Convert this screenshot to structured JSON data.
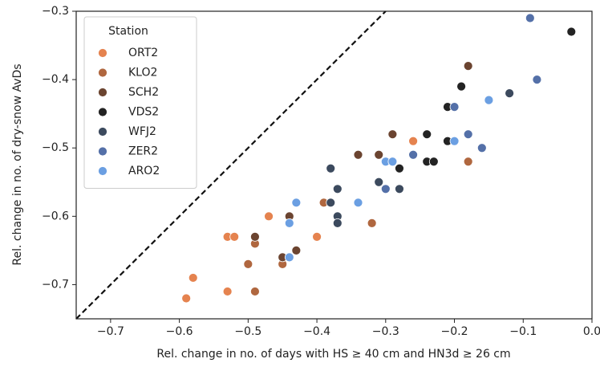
{
  "chart_data": {
    "type": "scatter",
    "x_label": "Rel. change in no. of days with HS ≥ 40 cm and HN3d ≥ 26 cm",
    "y_label": "Rel. change in no. of dry-snow AvDs",
    "legend_title": "Station",
    "legend": "upper left",
    "xlim": [
      -0.75,
      0.0
    ],
    "ylim": [
      -0.75,
      -0.3
    ],
    "xticks": [
      {
        "value": -0.7,
        "label": "−0.7"
      },
      {
        "value": -0.6,
        "label": "−0.6"
      },
      {
        "value": -0.5,
        "label": "−0.5"
      },
      {
        "value": -0.4,
        "label": "−0.4"
      },
      {
        "value": -0.3,
        "label": "−0.3"
      },
      {
        "value": -0.2,
        "label": "−0.2"
      },
      {
        "value": -0.1,
        "label": "−0.1"
      },
      {
        "value": 0.0,
        "label": "0.0"
      }
    ],
    "yticks": [
      {
        "value": -0.7,
        "label": "−0.7"
      },
      {
        "value": -0.6,
        "label": "−0.6"
      },
      {
        "value": -0.5,
        "label": "−0.5"
      },
      {
        "value": -0.4,
        "label": "−0.4"
      },
      {
        "value": -0.3,
        "label": "−0.3"
      }
    ],
    "series": [
      {
        "name": "ORT2",
        "color": "#e5834f",
        "x": [
          -0.26,
          -0.47,
          -0.53,
          -0.52,
          -0.4,
          -0.58,
          -0.53,
          -0.59
        ],
        "values": [
          -0.49,
          -0.6,
          -0.63,
          -0.63,
          -0.63,
          -0.69,
          -0.71,
          -0.72
        ]
      },
      {
        "name": "KLO2",
        "color": "#b0673f",
        "x": [
          -0.18,
          -0.39,
          -0.32,
          -0.49,
          -0.5,
          -0.45,
          -0.49
        ],
        "values": [
          -0.52,
          -0.58,
          -0.61,
          -0.64,
          -0.67,
          -0.67,
          -0.71
        ]
      },
      {
        "name": "SCH2",
        "color": "#6b4430",
        "x": [
          -0.18,
          -0.29,
          -0.34,
          -0.31,
          -0.44,
          -0.49,
          -0.43,
          -0.45
        ],
        "values": [
          -0.38,
          -0.48,
          -0.51,
          -0.51,
          -0.6,
          -0.63,
          -0.65,
          -0.66
        ]
      },
      {
        "name": "VDS2",
        "color": "#232323",
        "x": [
          -0.03,
          -0.19,
          -0.21,
          -0.24,
          -0.21,
          -0.24,
          -0.23,
          -0.28
        ],
        "values": [
          -0.33,
          -0.41,
          -0.44,
          -0.48,
          -0.49,
          -0.52,
          -0.52,
          -0.53
        ]
      },
      {
        "name": "WFJ2",
        "color": "#3c4a5e",
        "x": [
          -0.12,
          -0.38,
          -0.31,
          -0.37,
          -0.28,
          -0.38,
          -0.37,
          -0.37
        ],
        "values": [
          -0.42,
          -0.53,
          -0.55,
          -0.56,
          -0.56,
          -0.58,
          -0.6,
          -0.61
        ]
      },
      {
        "name": "ZER2",
        "color": "#5470a8",
        "x": [
          -0.09,
          -0.08,
          -0.2,
          -0.18,
          -0.16,
          -0.26,
          -0.3
        ],
        "values": [
          -0.31,
          -0.4,
          -0.44,
          -0.48,
          -0.5,
          -0.51,
          -0.56
        ]
      },
      {
        "name": "ARO2",
        "color": "#6b9fe2",
        "x": [
          -0.15,
          -0.2,
          -0.3,
          -0.29,
          -0.43,
          -0.34,
          -0.44,
          -0.44
        ],
        "values": [
          -0.43,
          -0.49,
          -0.52,
          -0.52,
          -0.58,
          -0.58,
          -0.61,
          -0.66
        ]
      }
    ]
  }
}
